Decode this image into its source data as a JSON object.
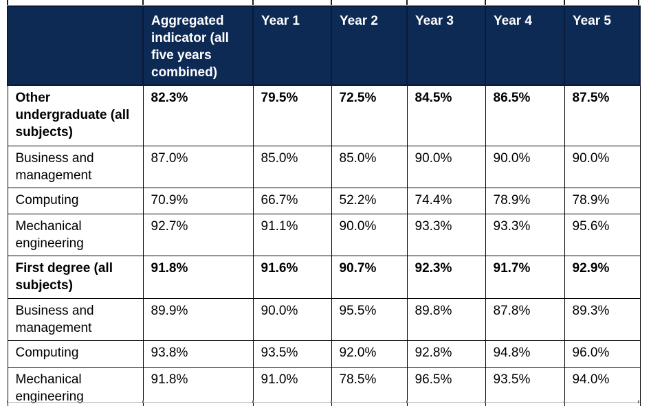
{
  "table": {
    "header": [
      "",
      "Aggregated indicator (all five years combined)",
      "Year 1",
      "Year 2",
      "Year 3",
      "Year 4",
      "Year 5"
    ],
    "rows": [
      {
        "label": "Other undergraduate (all subjects)",
        "bold": true,
        "values": [
          "82.3%",
          "79.5%",
          "72.5%",
          "84.5%",
          "86.5%",
          "87.5%"
        ]
      },
      {
        "label": "Business and management",
        "bold": false,
        "values": [
          "87.0%",
          "85.0%",
          "85.0%",
          "90.0%",
          "90.0%",
          "90.0%"
        ]
      },
      {
        "label": "Computing",
        "bold": false,
        "values": [
          "70.9%",
          "66.7%",
          "52.2%",
          "74.4%",
          "78.9%",
          "78.9%"
        ]
      },
      {
        "label": "Mechanical engineering",
        "bold": false,
        "values": [
          "92.7%",
          "91.1%",
          "90.0%",
          "93.3%",
          "93.3%",
          "95.6%"
        ]
      },
      {
        "label": "First degree (all subjects)",
        "bold": true,
        "values": [
          "91.8%",
          "91.6%",
          "90.7%",
          "92.3%",
          "91.7%",
          "92.9%"
        ]
      },
      {
        "label": "Business and management",
        "bold": false,
        "values": [
          "89.9%",
          "90.0%",
          "95.5%",
          "89.8%",
          "87.8%",
          "89.3%"
        ]
      },
      {
        "label": "Computing",
        "bold": false,
        "values": [
          "93.8%",
          "93.5%",
          "92.0%",
          "92.8%",
          "94.8%",
          "96.0%"
        ]
      },
      {
        "label": "Mechanical engineering",
        "bold": false,
        "values": [
          "91.8%",
          "91.0%",
          "78.5%",
          "96.5%",
          "93.5%",
          "94.0%"
        ]
      }
    ],
    "colors": {
      "header_bg": "#0d2a55",
      "header_text": "#ffffff",
      "header_border": "#0a1a38",
      "body_border": "#000000",
      "body_text": "#000000"
    }
  }
}
